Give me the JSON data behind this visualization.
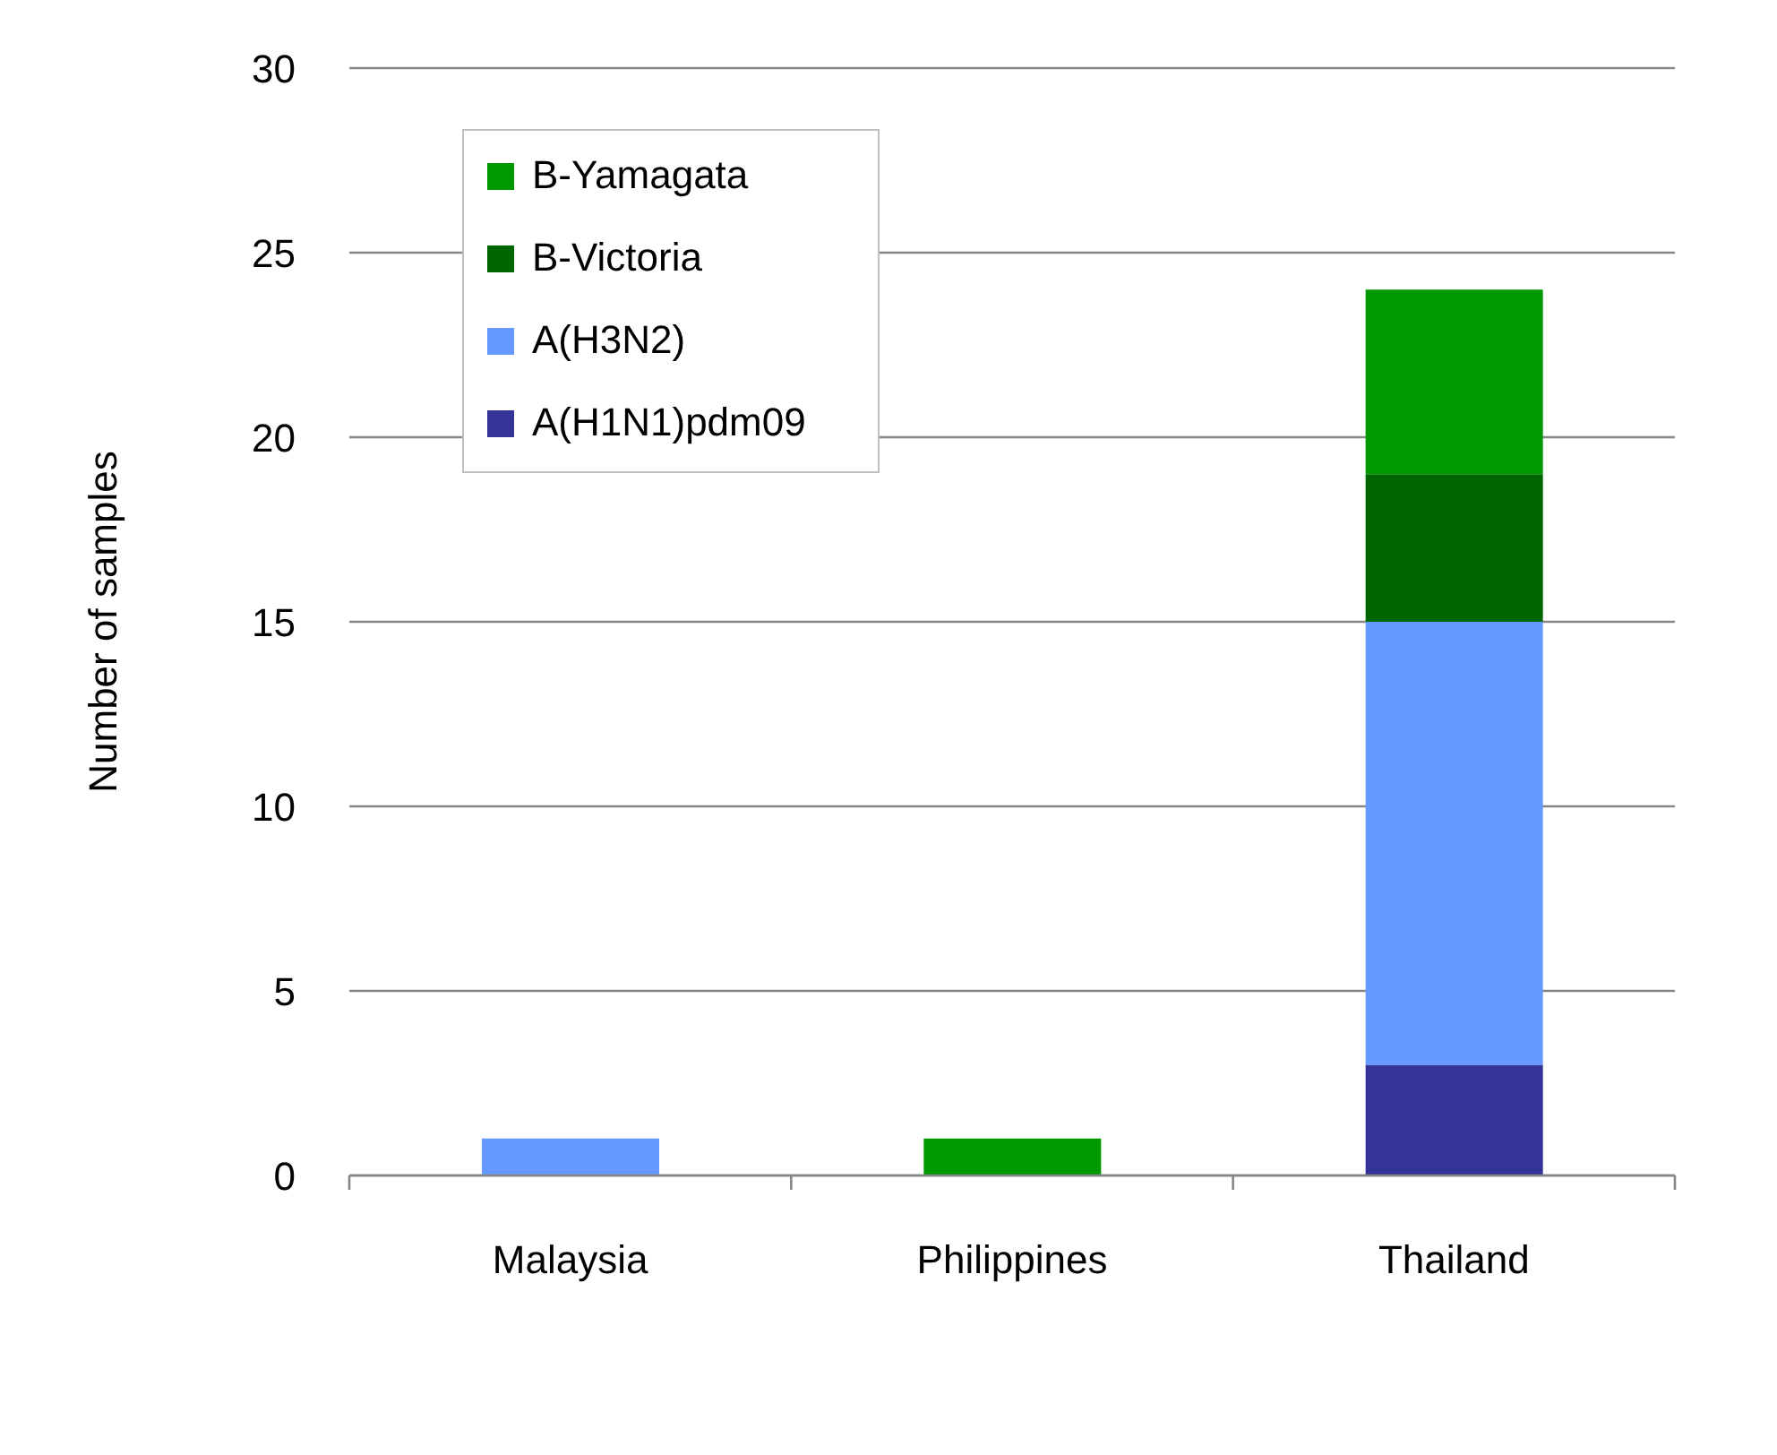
{
  "chart_data": {
    "type": "bar",
    "ylabel": "Number of samples",
    "categories": [
      "Malaysia",
      "Philippines",
      "Thailand"
    ],
    "stacked": true,
    "series": [
      {
        "name": "A(H1N1)pdm09",
        "color": "#333399",
        "values": [
          null,
          null,
          3
        ]
      },
      {
        "name": "A(H3N2)",
        "color": "#6699ff",
        "values": [
          1,
          null,
          12
        ]
      },
      {
        "name": "B-Victoria",
        "color": "#006600",
        "values": [
          null,
          null,
          4
        ]
      },
      {
        "name": "B-Yamagata",
        "color": "#009900",
        "values": [
          null,
          1,
          5
        ]
      }
    ],
    "ylim": [
      0,
      30
    ],
    "yticks": [
      0,
      5,
      10,
      15,
      20,
      25,
      30
    ],
    "grid": "y",
    "legend": "top left"
  }
}
